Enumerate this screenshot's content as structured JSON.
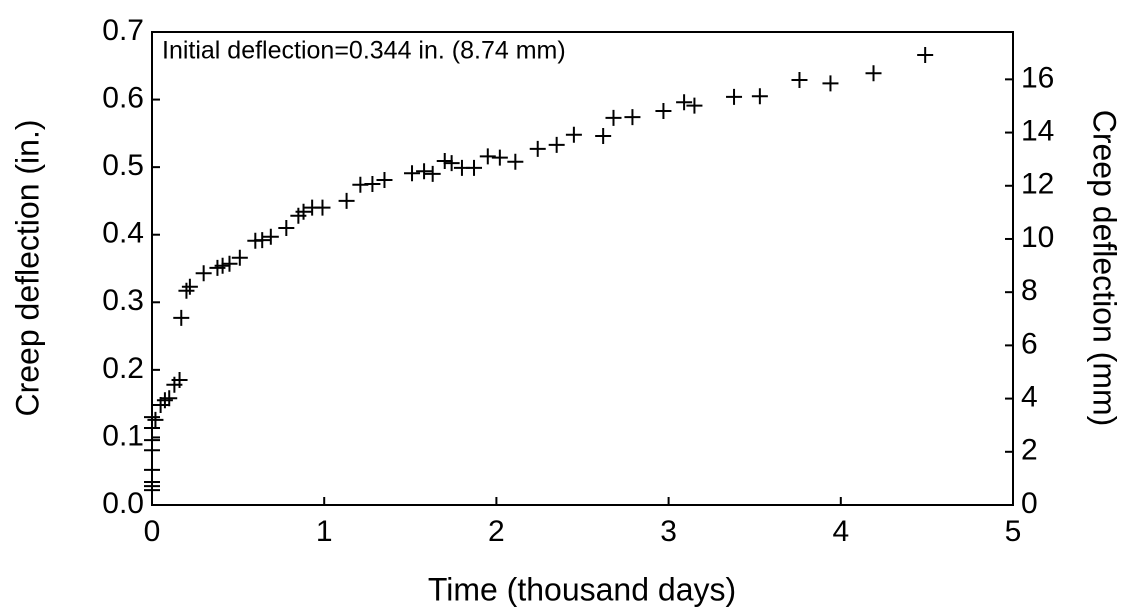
{
  "chart_data": {
    "type": "scatter",
    "annotation": "Initial deflection=0.344 in. (8.74 mm)",
    "xlabel": "Time (thousand days)",
    "ylabel": "Creep deflection (in.)",
    "y2label": "Creep deflection (mm)",
    "xlim": [
      0,
      5
    ],
    "xticks": [
      0,
      1,
      2,
      3,
      4,
      5
    ],
    "ylim": [
      0,
      0.7
    ],
    "yticks": [
      {
        "value": 0,
        "label": "0.0"
      },
      0.1,
      0.2,
      0.3,
      0.4,
      0.5,
      0.6,
      0.7
    ],
    "y2lim": [
      0,
      17.78
    ],
    "y2ticks": [
      0,
      2,
      4,
      6,
      8,
      10,
      12,
      14,
      16
    ],
    "marker": "+",
    "series": [
      {
        "color": "#000000",
        "x": [
          0,
          0,
          0,
          0,
          0,
          0,
          0,
          0,
          0.02,
          0.05,
          0.075,
          0.1,
          0.13,
          0.16,
          0.17,
          0.2,
          0.22,
          0.3,
          0.38,
          0.41,
          0.45,
          0.51,
          0.6,
          0.64,
          0.69,
          0.78,
          0.85,
          0.88,
          0.93,
          0.99,
          1.13,
          1.21,
          1.28,
          1.35,
          1.51,
          1.58,
          1.63,
          1.7,
          1.74,
          1.8,
          1.87,
          1.95,
          2.02,
          2.11,
          2.24,
          2.35,
          2.45,
          2.62,
          2.68,
          2.79,
          2.97,
          3.09,
          3.15,
          3.38,
          3.53,
          3.76,
          3.94,
          4.19,
          4.49
        ],
        "values": [
          0.022,
          0.028,
          0.034,
          0.052,
          0.081,
          0.096,
          0.114,
          0.13,
          0.126,
          0.148,
          0.155,
          0.158,
          0.178,
          0.185,
          0.277,
          0.317,
          0.323,
          0.343,
          0.351,
          0.354,
          0.357,
          0.366,
          0.391,
          0.392,
          0.397,
          0.41,
          0.428,
          0.434,
          0.44,
          0.44,
          0.45,
          0.474,
          0.475,
          0.481,
          0.491,
          0.494,
          0.49,
          0.509,
          0.506,
          0.499,
          0.499,
          0.516,
          0.514,
          0.508,
          0.527,
          0.533,
          0.548,
          0.546,
          0.573,
          0.574,
          0.583,
          0.596,
          0.591,
          0.604,
          0.605,
          0.629,
          0.624,
          0.639,
          0.666
        ]
      }
    ]
  }
}
